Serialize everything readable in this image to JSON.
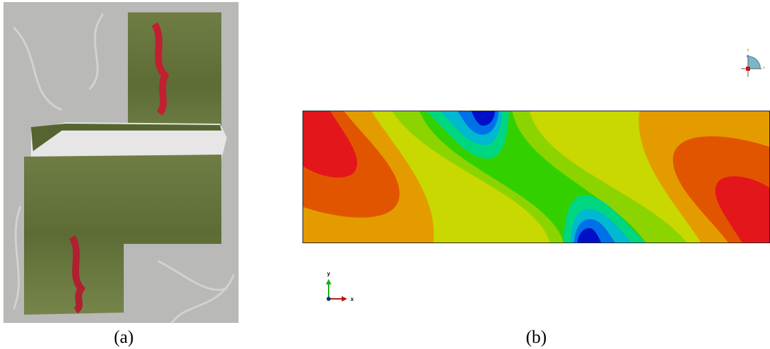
{
  "panels": [
    {
      "caption": "(a)"
    },
    {
      "caption": "(b)",
      "triad": {
        "x": "x",
        "y": "y"
      },
      "view_triad": {
        "x": "x",
        "y": "y"
      }
    }
  ]
}
